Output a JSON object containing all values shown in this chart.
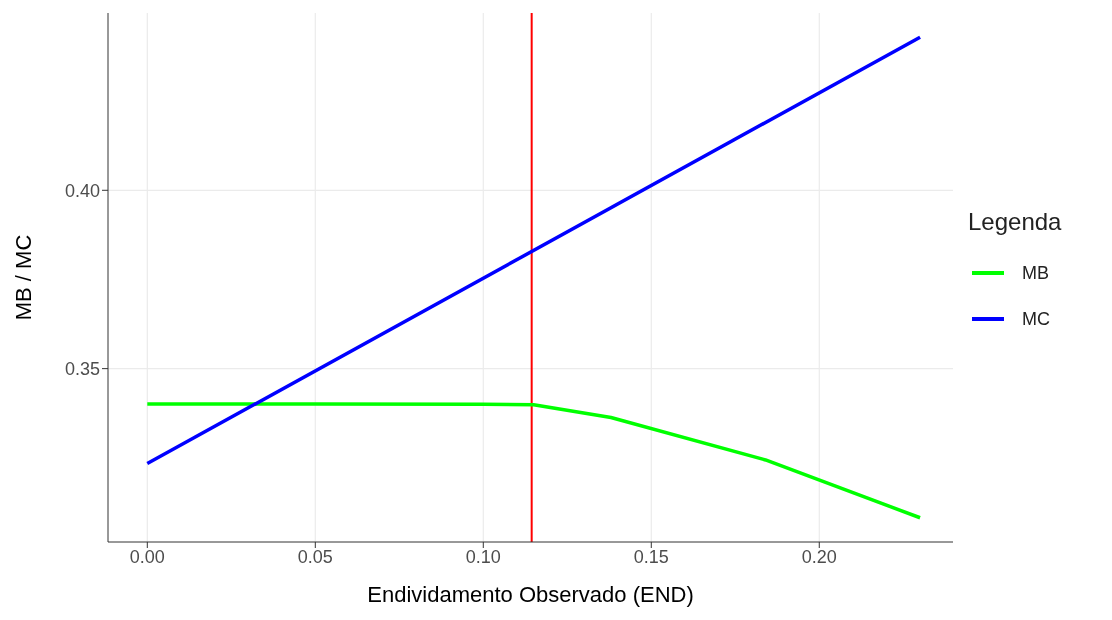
{
  "chart_data": {
    "type": "line",
    "xlabel": "Endividamento Observado (END)",
    "ylabel": "MB / MC",
    "legend_title": "Legenda",
    "series": [
      {
        "name": "MB",
        "color": "#00ff00",
        "x": [
          0,
          0.05,
          0.1,
          0.115,
          0.138,
          0.184,
          0.23
        ],
        "values": [
          0.3401,
          0.3401,
          0.34,
          0.3399,
          0.3363,
          0.3244,
          0.3082
        ]
      },
      {
        "name": "MC",
        "color": "#0000ff",
        "x": [
          0,
          0.23
        ],
        "values": [
          0.3234,
          0.4429
        ]
      }
    ],
    "xlim": [
      -0.0117,
      0.2398
    ],
    "xticks": [
      {
        "value": 0,
        "label": "0.00"
      },
      {
        "value": 0.05,
        "label": "0.05"
      },
      {
        "value": 0.1,
        "label": "0.10"
      },
      {
        "value": 0.15,
        "label": "0.15"
      },
      {
        "value": 0.2,
        "label": "0.20"
      }
    ],
    "ylim": [
      0.3014,
      0.4497
    ],
    "yticks": [
      {
        "value": 0.35,
        "label": "0.35"
      },
      {
        "value": 0.4,
        "label": "0.40"
      }
    ],
    "ref_lines": [
      {
        "axis": "x",
        "value": 0.1144,
        "color": "#ff0000"
      }
    ],
    "grid": true,
    "legend": "right",
    "marker": "none",
    "line_style": "solid"
  }
}
